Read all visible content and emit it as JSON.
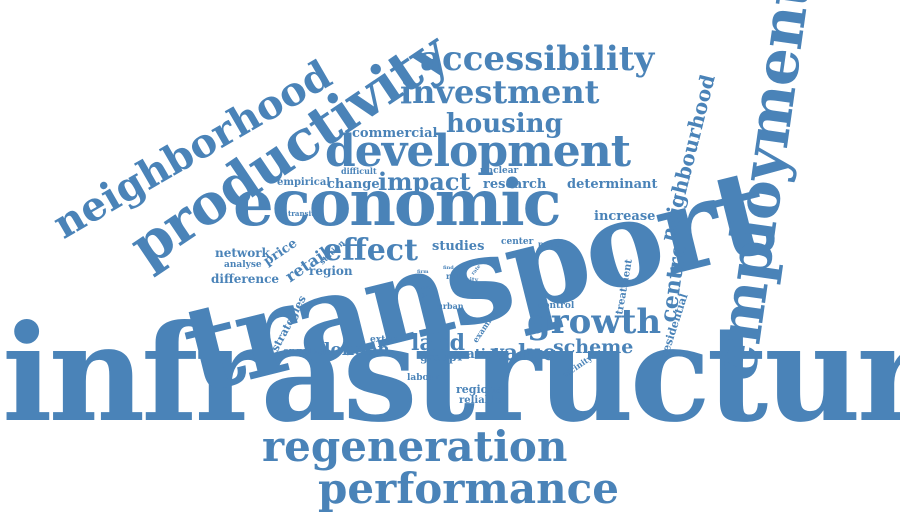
{
  "word_color": "#4a83b8",
  "background": "#ffffff",
  "words": {
    "infrastructure": "infrastructure",
    "transport": "transport",
    "economic": "economic",
    "employment": "employment",
    "productivity": "productivity",
    "neighborhood": "neighborhood",
    "development": "development",
    "regeneration": "regeneration",
    "performance": "performance",
    "accessibility": "accessibility",
    "investment": "investment",
    "housing": "housing",
    "growth": "growth",
    "effect": "effect",
    "impact": "impact",
    "neighbourhood": "neighbourhood",
    "centre": "centre",
    "land": "land",
    "value": "value",
    "london": "london",
    "scheme": "scheme",
    "commercial": "commercial",
    "research": "research",
    "determinant": "determinant",
    "increase": "increase",
    "change": "change",
    "empirical": "empirical",
    "difficult": "difficult",
    "unclear": "unclear",
    "transit": "transit",
    "network": "network",
    "analyse": "analyse",
    "difference": "difference",
    "price": "price",
    "retail": "retail",
    "station": "station",
    "region": "region",
    "studies": "studies",
    "center": "center",
    "policy": "policy",
    "treatment": "treatment",
    "residential": "residential",
    "control": "control",
    "examine": "examine",
    "strategies": "strategies",
    "ongoing": "ongoing",
    "extent": "extent",
    "spatial": "spatial",
    "group": "group",
    "labour": "labour",
    "regional": "regional",
    "reliable": "reliable",
    "vicinity": "vicinity",
    "urban": "urban",
    "level": "level",
    "rail": "rail",
    "city": "city",
    "firm": "firm",
    "find": "find",
    "work": "work",
    "rate": "rate"
  }
}
